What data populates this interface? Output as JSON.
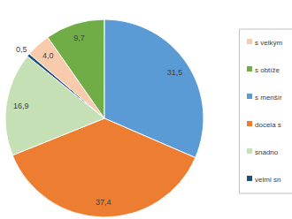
{
  "chart_data": {
    "type": "pie",
    "categories": [
      "s velkým",
      "s obtíže",
      "s menšír",
      "docela s",
      "snadno",
      "velmi sn"
    ],
    "values": [
      4.0,
      9.7,
      31.5,
      37.4,
      16.9,
      0.5
    ],
    "value_labels": [
      "4,0",
      "9,7",
      "31,5",
      "37,4",
      "16,9",
      "0,5"
    ],
    "colors": [
      "#f8cbad",
      "#70ad47",
      "#5b9bd5",
      "#ed7d31",
      "#c5e0b4",
      "#1f4e79"
    ],
    "data_labels": true,
    "legend": "right"
  }
}
